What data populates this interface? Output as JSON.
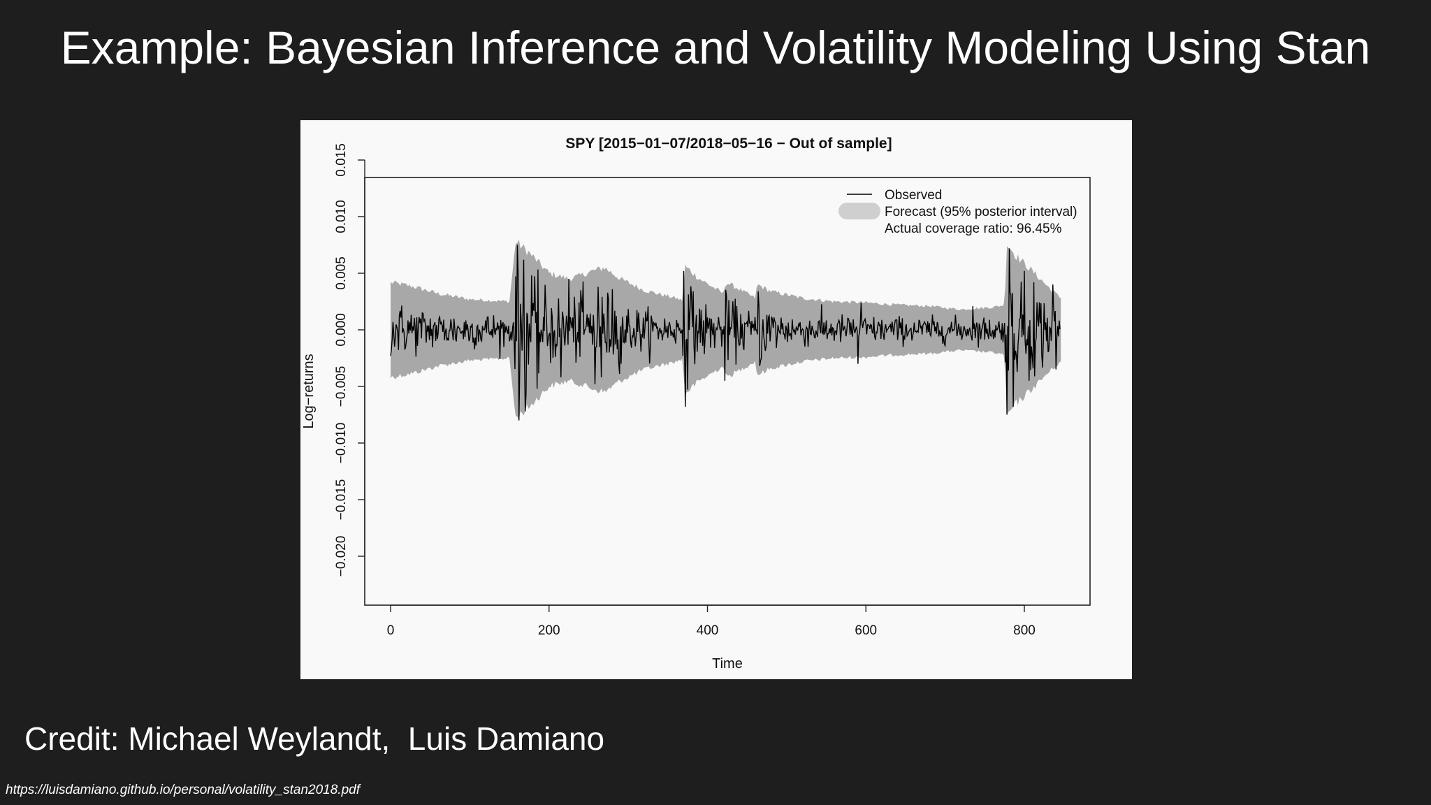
{
  "slide": {
    "title": "Example: Bayesian Inference and Volatility Modeling Using Stan",
    "credit": "Credit: Michael Weylandt,  Luis Damiano",
    "source_url": "https://luisdamiano.github.io/personal/volatility_stan2018.pdf"
  },
  "colors": {
    "background": "#1e1e1e",
    "chart_background": "#f9f9f9",
    "band": "#a8a8a8",
    "line": "#000000"
  },
  "chart_data": {
    "type": "line",
    "title": "SPY [2015−01−07/2018−05−16 − Out of sample]",
    "xlabel": "Time",
    "ylabel": "Log−returns",
    "xlim": [
      0,
      850
    ],
    "ylim": [
      -0.02,
      0.016
    ],
    "xticks": [
      0,
      200,
      400,
      600,
      800
    ],
    "xtick_labels": [
      "0",
      "200",
      "400",
      "600",
      "800"
    ],
    "yticks": [
      -0.02,
      -0.015,
      -0.01,
      -0.005,
      0.0,
      0.005,
      0.01,
      0.015
    ],
    "ytick_labels": [
      "−0.020",
      "−0.015",
      "−0.010",
      "−0.005",
      "0.000",
      "0.005",
      "0.010",
      "0.015"
    ],
    "legend_position": "top-right",
    "legend": {
      "observed": "Observed",
      "forecast": "Forecast (95% posterior interval)",
      "coverage": "Actual coverage ratio: 96.45%"
    },
    "grid": false,
    "series": [
      {
        "name": "Observed",
        "x_start": 0,
        "x_end": 845,
        "volatility_anchors": [
          [
            0,
            0.0022
          ],
          [
            60,
            0.0016
          ],
          [
            120,
            0.0014
          ],
          [
            155,
            0.0013
          ],
          [
            160,
            0.0055
          ],
          [
            175,
            0.004
          ],
          [
            200,
            0.003
          ],
          [
            230,
            0.0025
          ],
          [
            260,
            0.0032
          ],
          [
            280,
            0.0028
          ],
          [
            300,
            0.002
          ],
          [
            340,
            0.0014
          ],
          [
            368,
            0.0012
          ],
          [
            372,
            0.004
          ],
          [
            385,
            0.0025
          ],
          [
            420,
            0.0015
          ],
          [
            422,
            0.0028
          ],
          [
            440,
            0.002
          ],
          [
            462,
            0.0012
          ],
          [
            464,
            0.0026
          ],
          [
            500,
            0.0014
          ],
          [
            560,
            0.0012
          ],
          [
            600,
            0.0011
          ],
          [
            680,
            0.001
          ],
          [
            740,
            0.001
          ],
          [
            775,
            0.0011
          ],
          [
            778,
            0.0048
          ],
          [
            795,
            0.0032
          ],
          [
            810,
            0.0038
          ],
          [
            830,
            0.0025
          ],
          [
            845,
            0.0022
          ]
        ],
        "spikes": [
          [
            160,
            0.0075
          ],
          [
            162,
            -0.008
          ],
          [
            168,
            0.0062
          ],
          [
            170,
            -0.0072
          ],
          [
            178,
            0.0048
          ],
          [
            185,
            -0.0052
          ],
          [
            215,
            -0.0042
          ],
          [
            225,
            0.0045
          ],
          [
            240,
            0.0035
          ],
          [
            258,
            -0.0048
          ],
          [
            262,
            0.0038
          ],
          [
            266,
            -0.0042
          ],
          [
            280,
            0.0036
          ],
          [
            291,
            -0.003
          ],
          [
            370,
            0.0052
          ],
          [
            372,
            -0.0068
          ],
          [
            382,
            0.0034
          ],
          [
            422,
            -0.0045
          ],
          [
            424,
            0.003
          ],
          [
            464,
            0.0034
          ],
          [
            466,
            -0.0032
          ],
          [
            590,
            -0.003
          ],
          [
            594,
            0.0024
          ],
          [
            735,
            0.0021
          ],
          [
            778,
            -0.0075
          ],
          [
            781,
            0.0072
          ],
          [
            786,
            -0.0068
          ],
          [
            800,
            0.0052
          ],
          [
            806,
            -0.0045
          ],
          [
            812,
            0.0042
          ],
          [
            836,
            0.004
          ],
          [
            840,
            -0.0035
          ]
        ]
      },
      {
        "name": "Forecast (95% posterior interval)",
        "band_half_width_anchors": [
          [
            0,
            0.0042
          ],
          [
            30,
            0.0038
          ],
          [
            60,
            0.0032
          ],
          [
            100,
            0.0027
          ],
          [
            150,
            0.0025
          ],
          [
            158,
            0.0078
          ],
          [
            175,
            0.0068
          ],
          [
            200,
            0.005
          ],
          [
            225,
            0.0045
          ],
          [
            240,
            0.0048
          ],
          [
            255,
            0.0052
          ],
          [
            270,
            0.0055
          ],
          [
            290,
            0.0045
          ],
          [
            320,
            0.0035
          ],
          [
            360,
            0.0028
          ],
          [
            368,
            0.0026
          ],
          [
            372,
            0.0056
          ],
          [
            390,
            0.0045
          ],
          [
            420,
            0.0032
          ],
          [
            423,
            0.0042
          ],
          [
            440,
            0.0036
          ],
          [
            460,
            0.0028
          ],
          [
            463,
            0.004
          ],
          [
            480,
            0.0034
          ],
          [
            520,
            0.0028
          ],
          [
            560,
            0.0025
          ],
          [
            600,
            0.0024
          ],
          [
            640,
            0.0022
          ],
          [
            680,
            0.0021
          ],
          [
            720,
            0.0018
          ],
          [
            760,
            0.002
          ],
          [
            775,
            0.0022
          ],
          [
            778,
            0.0076
          ],
          [
            790,
            0.0065
          ],
          [
            810,
            0.0052
          ],
          [
            830,
            0.0038
          ],
          [
            846,
            0.0028
          ]
        ]
      }
    ]
  }
}
